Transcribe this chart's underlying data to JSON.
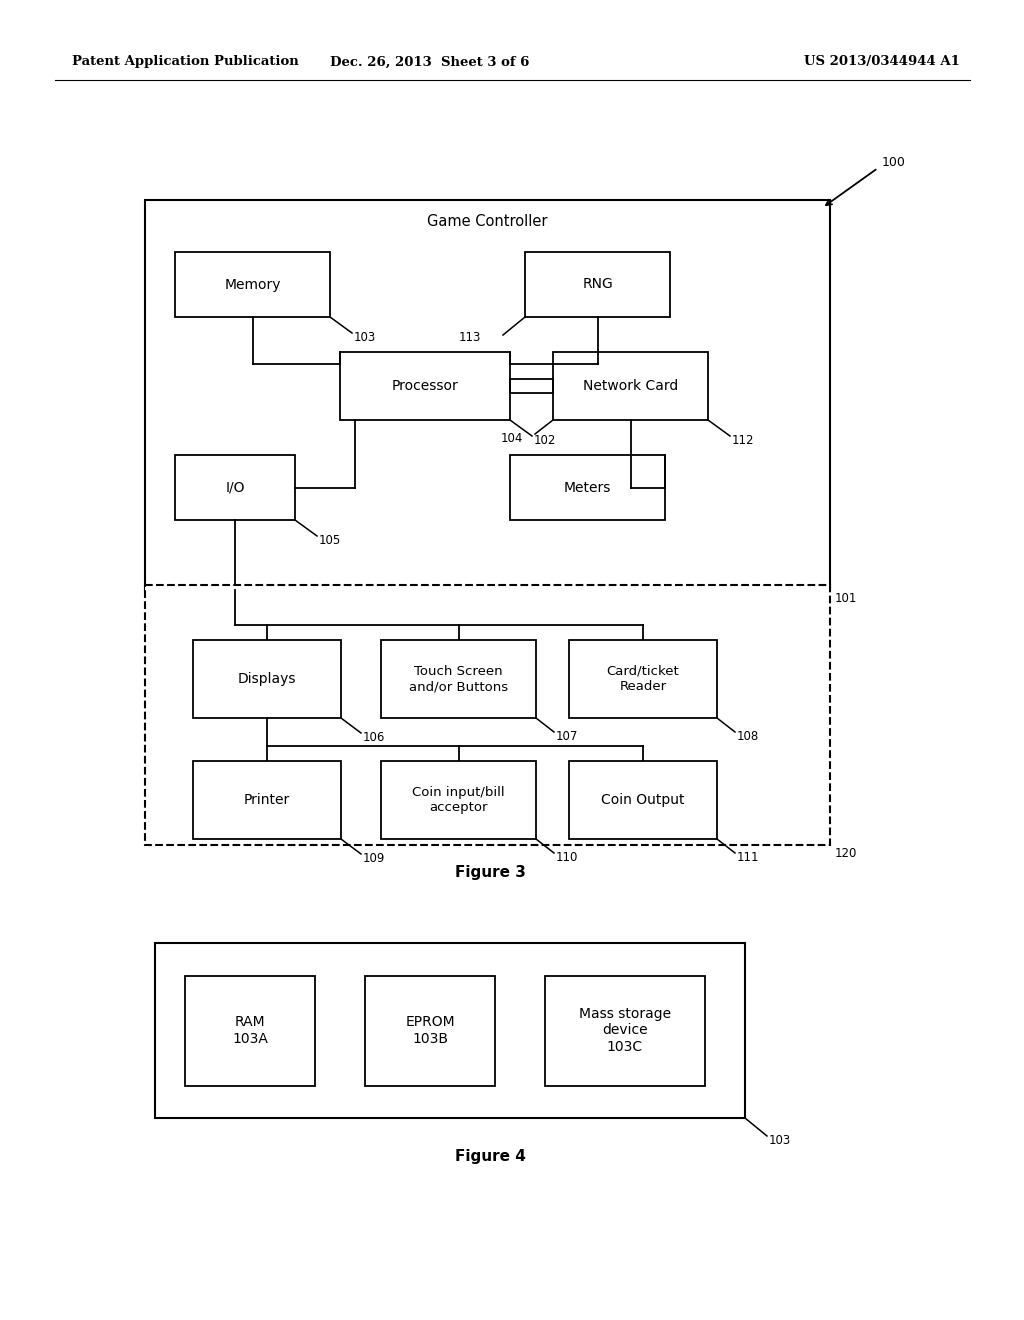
{
  "bg_color": "#ffffff",
  "header_left": "Patent Application Publication",
  "header_mid": "Dec. 26, 2013  Sheet 3 of 6",
  "header_right": "US 2013/0344944 A1",
  "fig3_title": "Figure 3",
  "fig4_title": "Figure 4"
}
